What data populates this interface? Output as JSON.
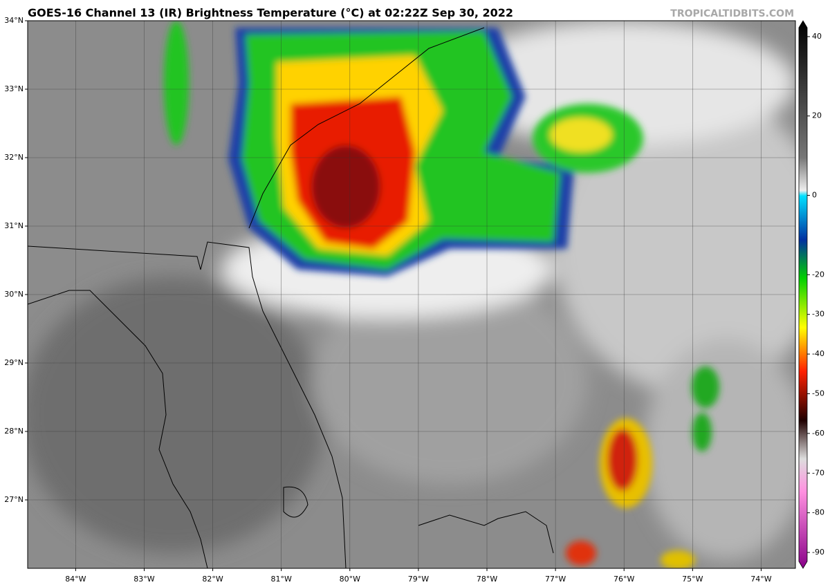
{
  "title": "GOES-16 Channel 13 (IR) Brightness Temperature (°C) at 02:22Z Sep 30, 2022",
  "watermark": "TROPICALTIDBITS.COM",
  "map": {
    "lonlim": [
      -84.7,
      -73.5
    ],
    "latlim": [
      26.0,
      34.0
    ],
    "latticks": [
      {
        "value": 34,
        "label": "34°N"
      },
      {
        "value": 33,
        "label": "33°N"
      },
      {
        "value": 32,
        "label": "32°N"
      },
      {
        "value": 31,
        "label": "31°N"
      },
      {
        "value": 30,
        "label": "30°N"
      },
      {
        "value": 29,
        "label": "29°N"
      },
      {
        "value": 28,
        "label": "28°N"
      },
      {
        "value": 27,
        "label": "27°N"
      }
    ],
    "lonticks": [
      {
        "value": -84,
        "label": "84°W"
      },
      {
        "value": -83,
        "label": "83°W"
      },
      {
        "value": -82,
        "label": "82°W"
      },
      {
        "value": -81,
        "label": "81°W"
      },
      {
        "value": -80,
        "label": "80°W"
      },
      {
        "value": -79,
        "label": "79°W"
      },
      {
        "value": -78,
        "label": "78°W"
      },
      {
        "value": -77,
        "label": "77°W"
      },
      {
        "value": -76,
        "label": "76°W"
      },
      {
        "value": -75,
        "label": "75°W"
      },
      {
        "value": -74,
        "label": "74°W"
      }
    ]
  },
  "colorbar": {
    "lim": [
      -94,
      44
    ],
    "ticks": [
      40,
      20,
      0,
      -20,
      -30,
      -40,
      -50,
      -60,
      -70,
      -80,
      -90
    ]
  }
}
